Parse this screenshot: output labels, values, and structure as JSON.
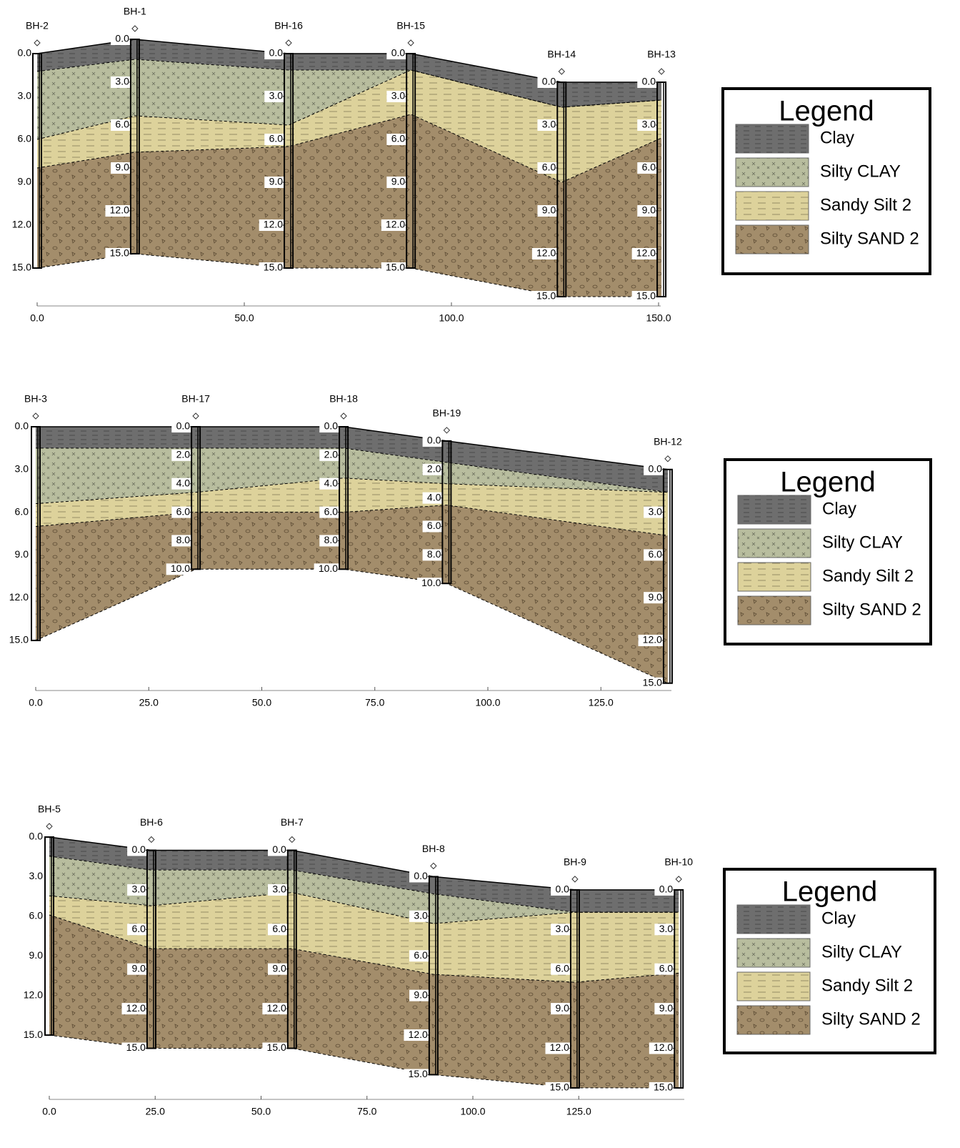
{
  "sections": [
    {
      "x_ticks": [
        {
          "value": 0,
          "label": "0.0"
        },
        {
          "value": 50,
          "label": "50.0"
        },
        {
          "value": 100,
          "label": "100.0"
        },
        {
          "value": 150,
          "label": "150.0"
        }
      ],
      "depth_ticks": [
        {
          "value": 0,
          "label": "0.0"
        },
        {
          "value": 3,
          "label": "3.0"
        },
        {
          "value": 6,
          "label": "6.0"
        },
        {
          "value": 9,
          "label": "9.0"
        },
        {
          "value": 12,
          "label": "12.0"
        },
        {
          "value": 15,
          "label": "15.0"
        }
      ],
      "boreholes": [
        {
          "name": "BH-2",
          "station": 0,
          "top": 0,
          "layer_bottoms": [
            1.25,
            6.0,
            8.0,
            15
          ]
        },
        {
          "name": "BH-1",
          "station": 23.6,
          "top": -1,
          "layer_bottoms": [
            1.4,
            5.35,
            7.9,
            15
          ],
          "depth_labels": [
            {
              "value": 0,
              "label": "0.0"
            },
            {
              "value": 3,
              "label": "3.0"
            },
            {
              "value": 6,
              "label": "6.0"
            },
            {
              "value": 9,
              "label": "9.0"
            },
            {
              "value": 12,
              "label": "12.0"
            },
            {
              "value": 15,
              "label": "15.0"
            }
          ]
        },
        {
          "name": "BH-16",
          "station": 60.7,
          "top": 0,
          "layer_bottoms": [
            1.15,
            5.0,
            6.5,
            15
          ],
          "depth_labels": [
            {
              "value": 0,
              "label": "0.0"
            },
            {
              "value": 3,
              "label": "3.0"
            },
            {
              "value": 6,
              "label": "6.0"
            },
            {
              "value": 9,
              "label": "9.0"
            },
            {
              "value": 12,
              "label": "12.0"
            },
            {
              "value": 15,
              "label": "15.0"
            }
          ]
        },
        {
          "name": "BH-15",
          "station": 90.2,
          "top": 0,
          "layer_bottoms": [
            1.15,
            1.15,
            4.25,
            15
          ],
          "depth_labels": [
            {
              "value": 0,
              "label": "0.0"
            },
            {
              "value": 3,
              "label": "3.0"
            },
            {
              "value": 6,
              "label": "6.0"
            },
            {
              "value": 9,
              "label": "9.0"
            },
            {
              "value": 12,
              "label": "12.0"
            },
            {
              "value": 15,
              "label": "15.0"
            }
          ]
        },
        {
          "name": "BH-14",
          "station": 126.6,
          "top": 2,
          "layer_bottoms": [
            1.75,
            1.75,
            7.0,
            15
          ],
          "depth_labels": [
            {
              "value": 0,
              "label": "0.0"
            },
            {
              "value": 3,
              "label": "3.0"
            },
            {
              "value": 6,
              "label": "6.0"
            },
            {
              "value": 9,
              "label": "9.0"
            },
            {
              "value": 12,
              "label": "12.0"
            },
            {
              "value": 15,
              "label": "15.0"
            }
          ]
        },
        {
          "name": "BH-13",
          "station": 150.7,
          "top": 2,
          "layer_bottoms": [
            1.25,
            1.25,
            3.9,
            15
          ],
          "depth_labels": [
            {
              "value": 0,
              "label": "0.0"
            },
            {
              "value": 3,
              "label": "3.0"
            },
            {
              "value": 6,
              "label": "6.0"
            },
            {
              "value": 9,
              "label": "9.0"
            },
            {
              "value": 12,
              "label": "12.0"
            },
            {
              "value": 15,
              "label": "15.0"
            }
          ]
        }
      ],
      "legend": {
        "title": "Legend",
        "items": [
          {
            "label": "Clay",
            "color": "#6e6e6e"
          },
          {
            "label": "Silty CLAY",
            "color": "#b8bd9e"
          },
          {
            "label": "Sandy Silt 2",
            "color": "#ddd29b"
          },
          {
            "label": "Silty SAND 2",
            "color": "#a38d6b"
          }
        ]
      }
    },
    {
      "x_ticks": [
        {
          "value": 0,
          "label": "0.0"
        },
        {
          "value": 25,
          "label": "25.0"
        },
        {
          "value": 50,
          "label": "50.0"
        },
        {
          "value": 75,
          "label": "75.0"
        },
        {
          "value": 100,
          "label": "100.0"
        },
        {
          "value": 125,
          "label": "125.0"
        }
      ],
      "depth_ticks": [
        {
          "value": 0,
          "label": "0.0"
        },
        {
          "value": 3,
          "label": "3.0"
        },
        {
          "value": 6,
          "label": "6.0"
        },
        {
          "value": 9,
          "label": "9.0"
        },
        {
          "value": 12,
          "label": "12.0"
        },
        {
          "value": 15,
          "label": "15.0"
        }
      ],
      "boreholes": [
        {
          "name": "BH-3",
          "station": 0,
          "top": 0,
          "layer_bottoms": [
            1.5,
            5.4,
            7.0,
            15
          ]
        },
        {
          "name": "BH-17",
          "station": 35.4,
          "top": 0,
          "layer_bottoms": [
            1.5,
            4.6,
            6.0,
            10
          ],
          "depth_labels": [
            {
              "value": 0,
              "label": "0.0"
            },
            {
              "value": 2,
              "label": "2.0"
            },
            {
              "value": 4,
              "label": "4.0"
            },
            {
              "value": 6,
              "label": "6.0"
            },
            {
              "value": 8,
              "label": "8.0"
            },
            {
              "value": 10,
              "label": "10.0"
            }
          ]
        },
        {
          "name": "BH-18",
          "station": 68.1,
          "top": 0,
          "layer_bottoms": [
            1.5,
            3.6,
            6.0,
            10
          ],
          "depth_labels": [
            {
              "value": 0,
              "label": "0.0"
            },
            {
              "value": 2,
              "label": "2.0"
            },
            {
              "value": 4,
              "label": "4.0"
            },
            {
              "value": 6,
              "label": "6.0"
            },
            {
              "value": 8,
              "label": "8.0"
            },
            {
              "value": 10,
              "label": "10.0"
            }
          ]
        },
        {
          "name": "BH-19",
          "station": 90.9,
          "top": 1,
          "layer_bottoms": [
            1.5,
            3.0,
            4.5,
            10
          ],
          "depth_labels": [
            {
              "value": 0,
              "label": "0.0"
            },
            {
              "value": 2,
              "label": "2.0"
            },
            {
              "value": 4,
              "label": "4.0"
            },
            {
              "value": 6,
              "label": "6.0"
            },
            {
              "value": 8,
              "label": "8.0"
            },
            {
              "value": 10,
              "label": "10.0"
            }
          ]
        },
        {
          "name": "BH-12",
          "station": 139.8,
          "top": 3,
          "layer_bottoms": [
            1.6,
            1.6,
            4.65,
            15
          ],
          "depth_labels": [
            {
              "value": 0,
              "label": "0.0"
            },
            {
              "value": 3,
              "label": "3.0"
            },
            {
              "value": 6,
              "label": "6.0"
            },
            {
              "value": 9,
              "label": "9.0"
            },
            {
              "value": 12,
              "label": "12.0"
            },
            {
              "value": 15,
              "label": "15.0"
            }
          ]
        }
      ],
      "legend": {
        "title": "Legend",
        "items": [
          {
            "label": "Clay",
            "color": "#6e6e6e"
          },
          {
            "label": "Silty CLAY",
            "color": "#b8bd9e"
          },
          {
            "label": "Sandy Silt 2",
            "color": "#ddd29b"
          },
          {
            "label": "Silty SAND 2",
            "color": "#a38d6b"
          }
        ]
      }
    },
    {
      "x_ticks": [
        {
          "value": 0,
          "label": "0.0"
        },
        {
          "value": 25,
          "label": "25.0"
        },
        {
          "value": 50,
          "label": "50.0"
        },
        {
          "value": 75,
          "label": "75.0"
        },
        {
          "value": 100,
          "label": "100.0"
        },
        {
          "value": 125,
          "label": "125.0"
        }
      ],
      "depth_ticks": [
        {
          "value": 0,
          "label": "0.0"
        },
        {
          "value": 3,
          "label": "3.0"
        },
        {
          "value": 6,
          "label": "6.0"
        },
        {
          "value": 9,
          "label": "9.0"
        },
        {
          "value": 12,
          "label": "12.0"
        },
        {
          "value": 15,
          "label": "15.0"
        }
      ],
      "boreholes": [
        {
          "name": "BH-5",
          "station": 0,
          "top": 0,
          "layer_bottoms": [
            1.45,
            4.45,
            5.9,
            15
          ]
        },
        {
          "name": "BH-6",
          "station": 24.1,
          "top": 1,
          "layer_bottoms": [
            1.5,
            4.2,
            7.45,
            15
          ],
          "depth_labels": [
            {
              "value": 0,
              "label": "0.0"
            },
            {
              "value": 3,
              "label": "3.0"
            },
            {
              "value": 6,
              "label": "6.0"
            },
            {
              "value": 9,
              "label": "9.0"
            },
            {
              "value": 12,
              "label": "12.0"
            },
            {
              "value": 15,
              "label": "15.0"
            }
          ]
        },
        {
          "name": "BH-7",
          "station": 57.3,
          "top": 1,
          "layer_bottoms": [
            1.5,
            3.2,
            7.45,
            15
          ],
          "depth_labels": [
            {
              "value": 0,
              "label": "0.0"
            },
            {
              "value": 3,
              "label": "3.0"
            },
            {
              "value": 6,
              "label": "6.0"
            },
            {
              "value": 9,
              "label": "9.0"
            },
            {
              "value": 12,
              "label": "12.0"
            },
            {
              "value": 15,
              "label": "15.0"
            }
          ]
        },
        {
          "name": "BH-8",
          "station": 90.7,
          "top": 3,
          "layer_bottoms": [
            1.3,
            3.55,
            7.4,
            15
          ],
          "depth_labels": [
            {
              "value": 0,
              "label": "0.0"
            },
            {
              "value": 3,
              "label": "3.0"
            },
            {
              "value": 6,
              "label": "6.0"
            },
            {
              "value": 9,
              "label": "9.0"
            },
            {
              "value": 12,
              "label": "12.0"
            },
            {
              "value": 15,
              "label": "15.0"
            }
          ]
        },
        {
          "name": "BH-9",
          "station": 124.1,
          "top": 4,
          "layer_bottoms": [
            1.7,
            1.7,
            7.0,
            15
          ],
          "depth_labels": [
            {
              "value": 0,
              "label": "0.0"
            },
            {
              "value": 3,
              "label": "3.0"
            },
            {
              "value": 6,
              "label": "6.0"
            },
            {
              "value": 9,
              "label": "9.0"
            },
            {
              "value": 12,
              "label": "12.0"
            },
            {
              "value": 15,
              "label": "15.0"
            }
          ]
        },
        {
          "name": "BH-10",
          "station": 148.6,
          "top": 4,
          "layer_bottoms": [
            1.7,
            1.7,
            6.3,
            15
          ],
          "depth_labels": [
            {
              "value": 0,
              "label": "0.0"
            },
            {
              "value": 3,
              "label": "3.0"
            },
            {
              "value": 6,
              "label": "6.0"
            },
            {
              "value": 9,
              "label": "9.0"
            },
            {
              "value": 12,
              "label": "12.0"
            },
            {
              "value": 15,
              "label": "15.0"
            }
          ]
        }
      ],
      "legend": {
        "title": "Legend",
        "items": [
          {
            "label": "Clay",
            "color": "#6e6e6e"
          },
          {
            "label": "Silty CLAY",
            "color": "#b8bd9e"
          },
          {
            "label": "Sandy Silt 2",
            "color": "#ddd29b"
          },
          {
            "label": "Silty SAND 2",
            "color": "#a38d6b"
          }
        ]
      }
    }
  ]
}
